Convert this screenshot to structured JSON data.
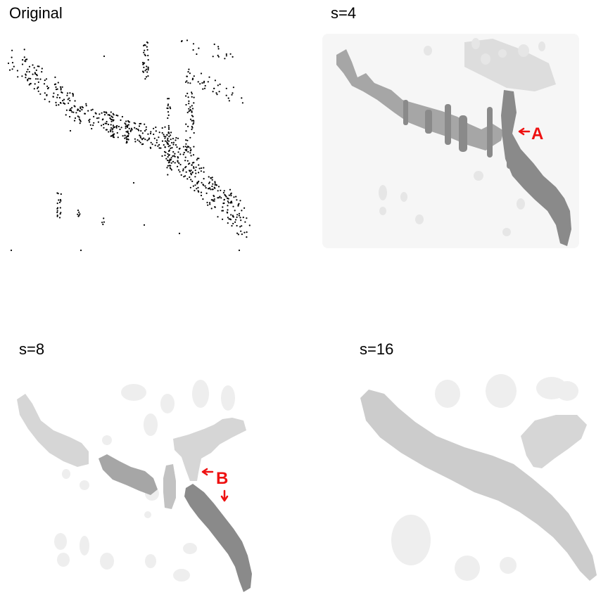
{
  "panels": {
    "original": {
      "title": "Original"
    },
    "s4": {
      "title": "s=4"
    },
    "s8": {
      "title": "s=8"
    },
    "s16": {
      "title": "s=16"
    }
  },
  "annotations": {
    "a": {
      "label": "A",
      "color": "#ee1111"
    },
    "b": {
      "label": "B",
      "color": "#ee1111"
    }
  },
  "colors": {
    "dots": "#000000",
    "lightest": "#f6f6f6",
    "light": "#eeeeee",
    "medium_light": "#d6d6d6",
    "medium": "#cccccc",
    "medium_dark": "#a6a6a6",
    "dark": "#8a8a8a"
  }
}
